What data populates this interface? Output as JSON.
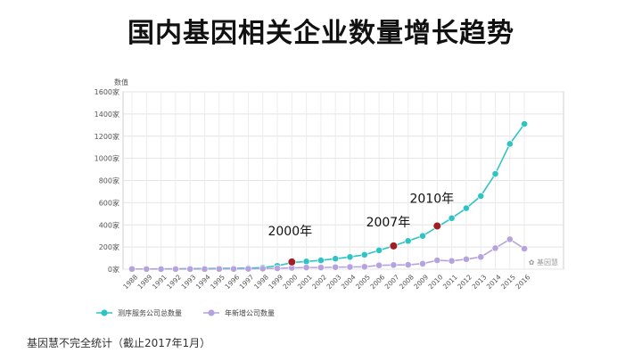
{
  "slide": {
    "title": "国内基因相关企业数量增长趋势",
    "footnote": "基因慧不完全统计（截止2017年1月）"
  },
  "chart_data": {
    "type": "line",
    "ylabel": "数值",
    "ylim": [
      0,
      1600
    ],
    "yticks": [
      "0家",
      "200家",
      "400家",
      "600家",
      "800家",
      "1000家",
      "1200家",
      "1400家",
      "1600家"
    ],
    "x": [
      "1988",
      "1989",
      "1991",
      "1992",
      "1993",
      "1994",
      "1995",
      "1996",
      "1997",
      "1998",
      "1999",
      "2000",
      "2001",
      "2002",
      "2003",
      "2004",
      "2005",
      "2006",
      "2007",
      "2008",
      "2009",
      "2010",
      "2011",
      "2012",
      "2013",
      "2014",
      "2015",
      "2016"
    ],
    "grid": true,
    "legend_position": "bottom-left",
    "watermark": "基因慧",
    "series": [
      {
        "name": "测序服务公司总数量",
        "color": "#2ec4c4",
        "values": [
          2,
          2,
          3,
          4,
          5,
          6,
          7,
          8,
          10,
          15,
          30,
          60,
          70,
          80,
          95,
          110,
          130,
          170,
          210,
          255,
          300,
          380,
          460,
          550,
          660,
          860,
          1130,
          1310
        ]
      },
      {
        "name": "年新增公司数量",
        "color": "#b6a3dd",
        "values": [
          2,
          1,
          1,
          1,
          1,
          1,
          2,
          2,
          3,
          5,
          8,
          12,
          15,
          15,
          18,
          20,
          22,
          35,
          38,
          40,
          50,
          80,
          75,
          90,
          110,
          190,
          270,
          185
        ]
      }
    ],
    "annotations": [
      {
        "label": "2000年",
        "x": "2000",
        "y": 65,
        "color": "#a01f26"
      },
      {
        "label": "2007年",
        "x": "2007",
        "y": 210,
        "color": "#a01f26"
      },
      {
        "label": "2010年",
        "x": "2010",
        "y": 390,
        "color": "#a01f26"
      }
    ]
  }
}
